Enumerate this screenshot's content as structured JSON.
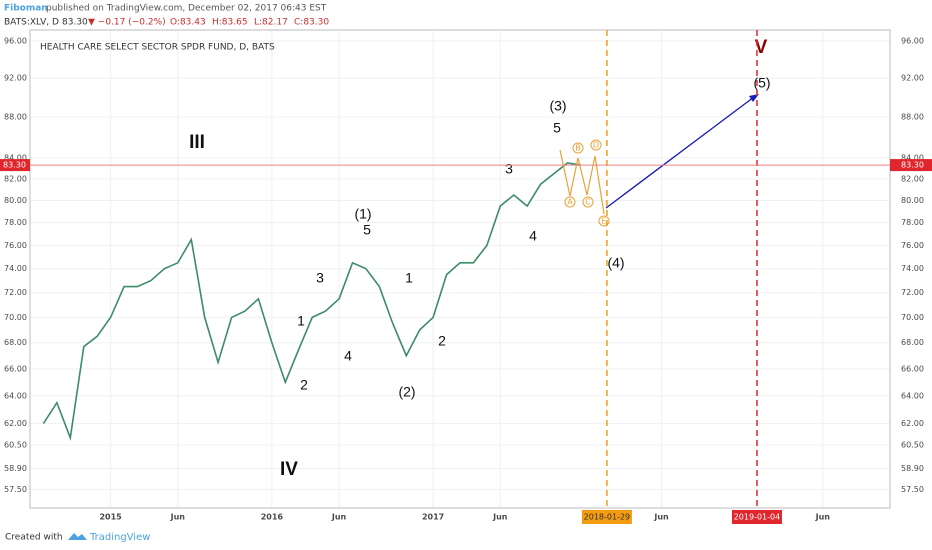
{
  "header": {
    "author": "Fiboman",
    "published": "published on TradingView.com, December 02, 2017 06:43 EST",
    "symbol": "BATS:XLV, D",
    "price": "83.30",
    "change": "▼ −0.17 (−0.2%)",
    "open": "O:83.43",
    "high": "H:83.65",
    "low": "L:82.17",
    "close": "C:83.30"
  },
  "chart_data": {
    "type": "line",
    "title": "HEALTH CARE SELECT SECTOR SPDR FUND, D, BATS",
    "x": [
      "2014-08",
      "2014-09",
      "2014-10",
      "2014-11",
      "2014-12",
      "2015-01",
      "2015-02",
      "2015-03",
      "2015-04",
      "2015-05",
      "2015-06",
      "2015-07",
      "2015-08",
      "2015-09",
      "2015-10",
      "2015-11",
      "2015-12",
      "2016-01",
      "2016-02",
      "2016-03",
      "2016-04",
      "2016-05",
      "2016-06",
      "2016-07",
      "2016-08",
      "2016-09",
      "2016-10",
      "2016-11",
      "2016-12",
      "2017-01",
      "2017-02",
      "2017-03",
      "2017-04",
      "2017-05",
      "2017-06",
      "2017-07",
      "2017-08",
      "2017-09",
      "2017-10",
      "2017-11",
      "2017-12"
    ],
    "series": [
      {
        "color": "#3d8c68",
        "values": [
          62,
          63.5,
          61,
          67.7,
          68.5,
          70,
          72.5,
          72.5,
          73,
          74,
          74.5,
          76.5,
          70,
          66.5,
          70,
          70.5,
          71.5,
          68,
          65,
          67.5,
          70,
          70.5,
          71.5,
          74.5,
          74,
          72.5,
          69.5,
          67,
          69,
          70,
          73.5,
          74.5,
          74.5,
          76,
          79.5,
          80.5,
          79.5,
          81.5,
          82.5,
          83.5,
          83.3
        ]
      }
    ],
    "log_scale": true,
    "grid": true,
    "ylim": [
      56.3,
      97.2
    ],
    "yticks": [
      {
        "value": 96,
        "label": "96.00"
      },
      {
        "value": 92,
        "label": "92.00"
      },
      {
        "value": 88,
        "label": "88.00"
      },
      {
        "value": 84,
        "label": "84.00"
      },
      {
        "value": 82,
        "label": "82.00"
      },
      {
        "value": 80,
        "label": "80.00"
      },
      {
        "value": 78,
        "label": "78.00"
      },
      {
        "value": 76,
        "label": "76.00"
      },
      {
        "value": 74,
        "label": "74.00"
      },
      {
        "value": 72,
        "label": "72.00"
      },
      {
        "value": 70,
        "label": "70.00"
      },
      {
        "value": 68,
        "label": "68.00"
      },
      {
        "value": 66,
        "label": "66.00"
      },
      {
        "value": 64,
        "label": "64.00"
      },
      {
        "value": 62,
        "label": "62.00"
      },
      {
        "value": 60.5,
        "label": "60.50"
      },
      {
        "value": 58.9,
        "label": "58.90"
      },
      {
        "value": 57.5,
        "label": "57.50"
      }
    ],
    "xlim": [
      "2014-07",
      "2019-11"
    ],
    "xticks": [
      {
        "value": "2015-01",
        "label": "2015"
      },
      {
        "value": "2015-06",
        "label": "Jun"
      },
      {
        "value": "2016-01",
        "label": "2016"
      },
      {
        "value": "2016-06",
        "label": "Jun"
      },
      {
        "value": "2017-01",
        "label": "2017"
      },
      {
        "value": "2017-06",
        "label": "Jun"
      },
      {
        "value": "2018-01-29",
        "label": "2018-01-29"
      },
      {
        "value": "2018-06",
        "label": "Jun"
      },
      {
        "value": "2019-01-04",
        "label": "2019-01-04"
      },
      {
        "value": "2019-06",
        "label": "Jun"
      }
    ],
    "last_price": {
      "value": 83.3,
      "label": "83.30"
    },
    "annotations": [
      "III",
      "IV",
      "V",
      "(1)",
      "5",
      "3",
      "1",
      "4",
      "2",
      "1",
      "2",
      "(2)",
      "3",
      "4",
      "(3)",
      "5",
      "(4)",
      "(5)",
      "A",
      "B",
      "C",
      "D",
      "E"
    ]
  },
  "footer": {
    "created": "Created with",
    "brand": "TradingView"
  }
}
